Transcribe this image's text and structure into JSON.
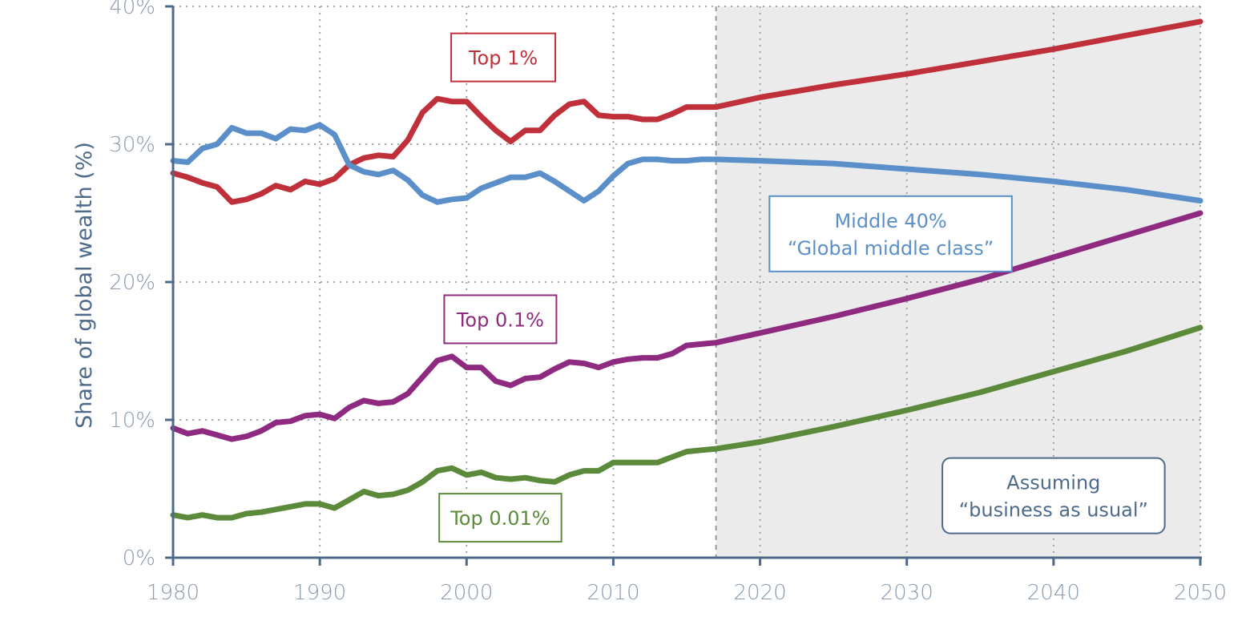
{
  "chart_data": {
    "type": "line",
    "title": "",
    "xlabel": "",
    "ylabel": "Share of global wealth (%)",
    "xlim": [
      1980,
      2050
    ],
    "ylim": [
      0,
      40
    ],
    "x_ticks": [
      "1980",
      "1990",
      "2000",
      "2010",
      "2020",
      "2030",
      "2040",
      "2050"
    ],
    "y_ticks": [
      "0%",
      "10%",
      "20%",
      "30%",
      "40%"
    ],
    "grid": true,
    "projection_start": 2017,
    "projection_shading_color": "#ebebeb",
    "series": [
      {
        "name": "Top 1%",
        "color": "#c0303a",
        "historical_x": [
          1980,
          1981,
          1982,
          1983,
          1984,
          1985,
          1986,
          1987,
          1988,
          1989,
          1990,
          1991,
          1992,
          1993,
          1994,
          1995,
          1996,
          1997,
          1998,
          1999,
          2000,
          2001,
          2002,
          2003,
          2004,
          2005,
          2006,
          2007,
          2008,
          2009,
          2010,
          2011,
          2012,
          2013,
          2014,
          2015,
          2016,
          2017
        ],
        "historical_y": [
          27.9,
          27.6,
          27.2,
          26.9,
          25.8,
          26.0,
          26.4,
          27.0,
          26.7,
          27.3,
          27.1,
          27.5,
          28.5,
          29.0,
          29.2,
          29.1,
          30.3,
          32.3,
          33.3,
          33.1,
          33.1,
          32.0,
          31.0,
          30.2,
          31.0,
          31.0,
          32.1,
          32.9,
          33.1,
          32.1,
          32.0,
          32.0,
          31.8,
          31.8,
          32.2,
          32.7,
          32.7,
          32.7
        ],
        "projection_x": [
          2017,
          2020,
          2025,
          2030,
          2035,
          2040,
          2045,
          2050
        ],
        "projection_y": [
          32.7,
          33.4,
          34.3,
          35.1,
          36.0,
          36.9,
          37.9,
          38.9
        ]
      },
      {
        "name": "Middle 40% “Global middle class”",
        "color": "#5b8fc9",
        "historical_x": [
          1980,
          1981,
          1982,
          1983,
          1984,
          1985,
          1986,
          1987,
          1988,
          1989,
          1990,
          1991,
          1992,
          1993,
          1994,
          1995,
          1996,
          1997,
          1998,
          1999,
          2000,
          2001,
          2002,
          2003,
          2004,
          2005,
          2006,
          2007,
          2008,
          2009,
          2010,
          2011,
          2012,
          2013,
          2014,
          2015,
          2016,
          2017
        ],
        "historical_y": [
          28.8,
          28.7,
          29.7,
          30.0,
          31.2,
          30.8,
          30.8,
          30.4,
          31.1,
          31.0,
          31.4,
          30.7,
          28.5,
          28.0,
          27.8,
          28.1,
          27.4,
          26.3,
          25.8,
          26.0,
          26.1,
          26.8,
          27.2,
          27.6,
          27.6,
          27.9,
          27.3,
          26.6,
          25.9,
          26.6,
          27.7,
          28.6,
          28.9,
          28.9,
          28.8,
          28.8,
          28.9,
          28.9
        ],
        "projection_x": [
          2017,
          2020,
          2025,
          2030,
          2035,
          2040,
          2045,
          2050
        ],
        "projection_y": [
          28.9,
          28.8,
          28.6,
          28.2,
          27.8,
          27.3,
          26.7,
          25.9
        ]
      },
      {
        "name": "Top 0.1%",
        "color": "#8e2a7f",
        "historical_x": [
          1980,
          1981,
          1982,
          1983,
          1984,
          1985,
          1986,
          1987,
          1988,
          1989,
          1990,
          1991,
          1992,
          1993,
          1994,
          1995,
          1996,
          1997,
          1998,
          1999,
          2000,
          2001,
          2002,
          2003,
          2004,
          2005,
          2006,
          2007,
          2008,
          2009,
          2010,
          2011,
          2012,
          2013,
          2014,
          2015,
          2016,
          2017
        ],
        "historical_y": [
          9.4,
          9.0,
          9.2,
          8.9,
          8.6,
          8.8,
          9.2,
          9.8,
          9.9,
          10.3,
          10.4,
          10.1,
          10.9,
          11.4,
          11.2,
          11.3,
          11.9,
          13.1,
          14.3,
          14.6,
          13.8,
          13.8,
          12.8,
          12.5,
          13.0,
          13.1,
          13.7,
          14.2,
          14.1,
          13.8,
          14.2,
          14.4,
          14.5,
          14.5,
          14.8,
          15.4,
          15.5,
          15.6
        ],
        "projection_x": [
          2017,
          2020,
          2025,
          2030,
          2035,
          2040,
          2045,
          2050
        ],
        "projection_y": [
          15.6,
          16.3,
          17.5,
          18.8,
          20.2,
          21.8,
          23.4,
          25.0
        ]
      },
      {
        "name": "Top 0.01%",
        "color": "#5b8a3a",
        "historical_x": [
          1980,
          1981,
          1982,
          1983,
          1984,
          1985,
          1986,
          1987,
          1988,
          1989,
          1990,
          1991,
          1992,
          1993,
          1994,
          1995,
          1996,
          1997,
          1998,
          1999,
          2000,
          2001,
          2002,
          2003,
          2004,
          2005,
          2006,
          2007,
          2008,
          2009,
          2010,
          2011,
          2012,
          2013,
          2014,
          2015,
          2016,
          2017
        ],
        "historical_y": [
          3.1,
          2.9,
          3.1,
          2.9,
          2.9,
          3.2,
          3.3,
          3.5,
          3.7,
          3.9,
          3.9,
          3.6,
          4.2,
          4.8,
          4.5,
          4.6,
          4.9,
          5.5,
          6.3,
          6.5,
          6.0,
          6.2,
          5.8,
          5.7,
          5.8,
          5.6,
          5.5,
          6.0,
          6.3,
          6.3,
          6.9,
          6.9,
          6.9,
          6.9,
          7.3,
          7.7,
          7.8,
          7.9
        ],
        "projection_x": [
          2017,
          2020,
          2025,
          2030,
          2035,
          2040,
          2045,
          2050
        ],
        "projection_y": [
          7.9,
          8.4,
          9.5,
          10.7,
          12.0,
          13.5,
          15.0,
          16.7
        ]
      }
    ],
    "annotations": [
      {
        "id": "top1",
        "lines": [
          "Top 1%"
        ],
        "color": "#c0303a",
        "rounded": false,
        "anchor_x": 2002.5,
        "anchor_y": 36.3
      },
      {
        "id": "middle40",
        "lines": [
          "Middle 40%",
          "“Global middle class”"
        ],
        "color": "#5b8fc9",
        "rounded": false,
        "anchor_x": 2028.9,
        "anchor_y": 23.5
      },
      {
        "id": "top01",
        "lines": [
          "Top 0.1%"
        ],
        "color": "#8e2a7f",
        "rounded": false,
        "anchor_x": 2002.3,
        "anchor_y": 17.3
      },
      {
        "id": "top001",
        "lines": [
          "Top 0.01%"
        ],
        "color": "#5b8a3a",
        "rounded": false,
        "anchor_x": 2002.3,
        "anchor_y": 2.9
      },
      {
        "id": "bau",
        "lines": [
          "Assuming",
          "“business as usual”"
        ],
        "color": "#4d6a8a",
        "rounded": true,
        "anchor_x": 2040,
        "anchor_y": 4.5
      }
    ]
  }
}
